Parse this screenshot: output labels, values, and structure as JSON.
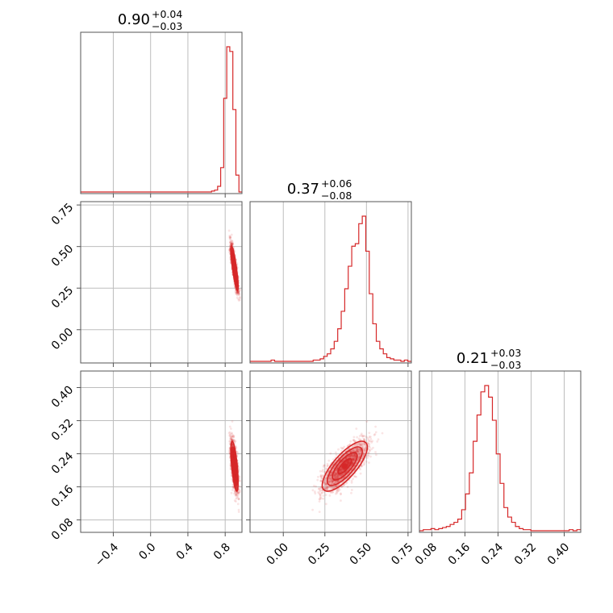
{
  "chart_data": {
    "type": "corner",
    "color": "#d62728",
    "params": [
      {
        "median": "0.90",
        "plus": "+0.04",
        "minus": "−0.03",
        "center": 0.9,
        "sd": 0.02,
        "range": [
          -0.75,
          0.98
        ]
      },
      {
        "median": "0.37",
        "plus": "+0.06",
        "minus": "−0.08",
        "center": 0.37,
        "sd": 0.07,
        "range": [
          -0.2,
          0.77
        ]
      },
      {
        "median": "0.21",
        "plus": "+0.03",
        "minus": "−0.03",
        "center": 0.21,
        "sd": 0.03,
        "range": [
          0.05,
          0.44
        ]
      }
    ],
    "ticks": [
      {
        "values": [
          -0.4,
          0.0,
          0.4,
          0.8
        ],
        "labels": [
          "−0.4",
          "0.0",
          "0.4",
          "0.8"
        ]
      },
      {
        "values": [
          0.0,
          0.25,
          0.5,
          0.75
        ],
        "labels": [
          "0.00",
          "0.25",
          "0.50",
          "0.75"
        ]
      },
      {
        "values": [
          0.08,
          0.16,
          0.24,
          0.32,
          0.4
        ],
        "labels": [
          "0.08",
          "0.16",
          "0.24",
          "0.32",
          "0.40"
        ]
      }
    ],
    "hist_counts": [
      [
        0,
        0,
        0,
        0,
        0,
        0,
        0,
        0,
        0,
        0,
        0,
        0,
        0,
        0,
        0,
        0,
        0,
        0,
        0,
        0,
        0,
        0,
        0,
        0,
        0,
        0,
        0,
        0,
        0,
        0,
        0,
        0,
        0,
        0,
        0,
        0,
        0,
        0,
        0,
        0,
        0,
        0,
        0,
        1,
        2,
        6,
        26,
        100,
        155,
        150,
        88,
        18,
        0
      ],
      [
        0,
        0,
        0,
        0,
        0,
        0,
        1,
        0,
        0,
        0,
        0,
        0,
        0,
        0,
        0,
        0,
        0,
        0,
        1,
        1,
        2,
        4,
        6,
        10,
        16,
        26,
        40,
        58,
        76,
        92,
        94,
        110,
        116,
        88,
        54,
        30,
        16,
        10,
        6,
        3,
        2,
        1,
        1,
        0,
        1,
        0
      ],
      [
        0,
        1,
        1,
        2,
        1,
        2,
        3,
        4,
        6,
        8,
        11,
        20,
        35,
        55,
        85,
        110,
        132,
        138,
        127,
        105,
        73,
        45,
        22,
        13,
        8,
        4,
        2,
        1,
        1,
        0,
        0,
        0,
        0,
        0,
        0,
        0,
        0,
        0,
        0,
        1,
        0,
        1
      ]
    ],
    "grid": true
  }
}
